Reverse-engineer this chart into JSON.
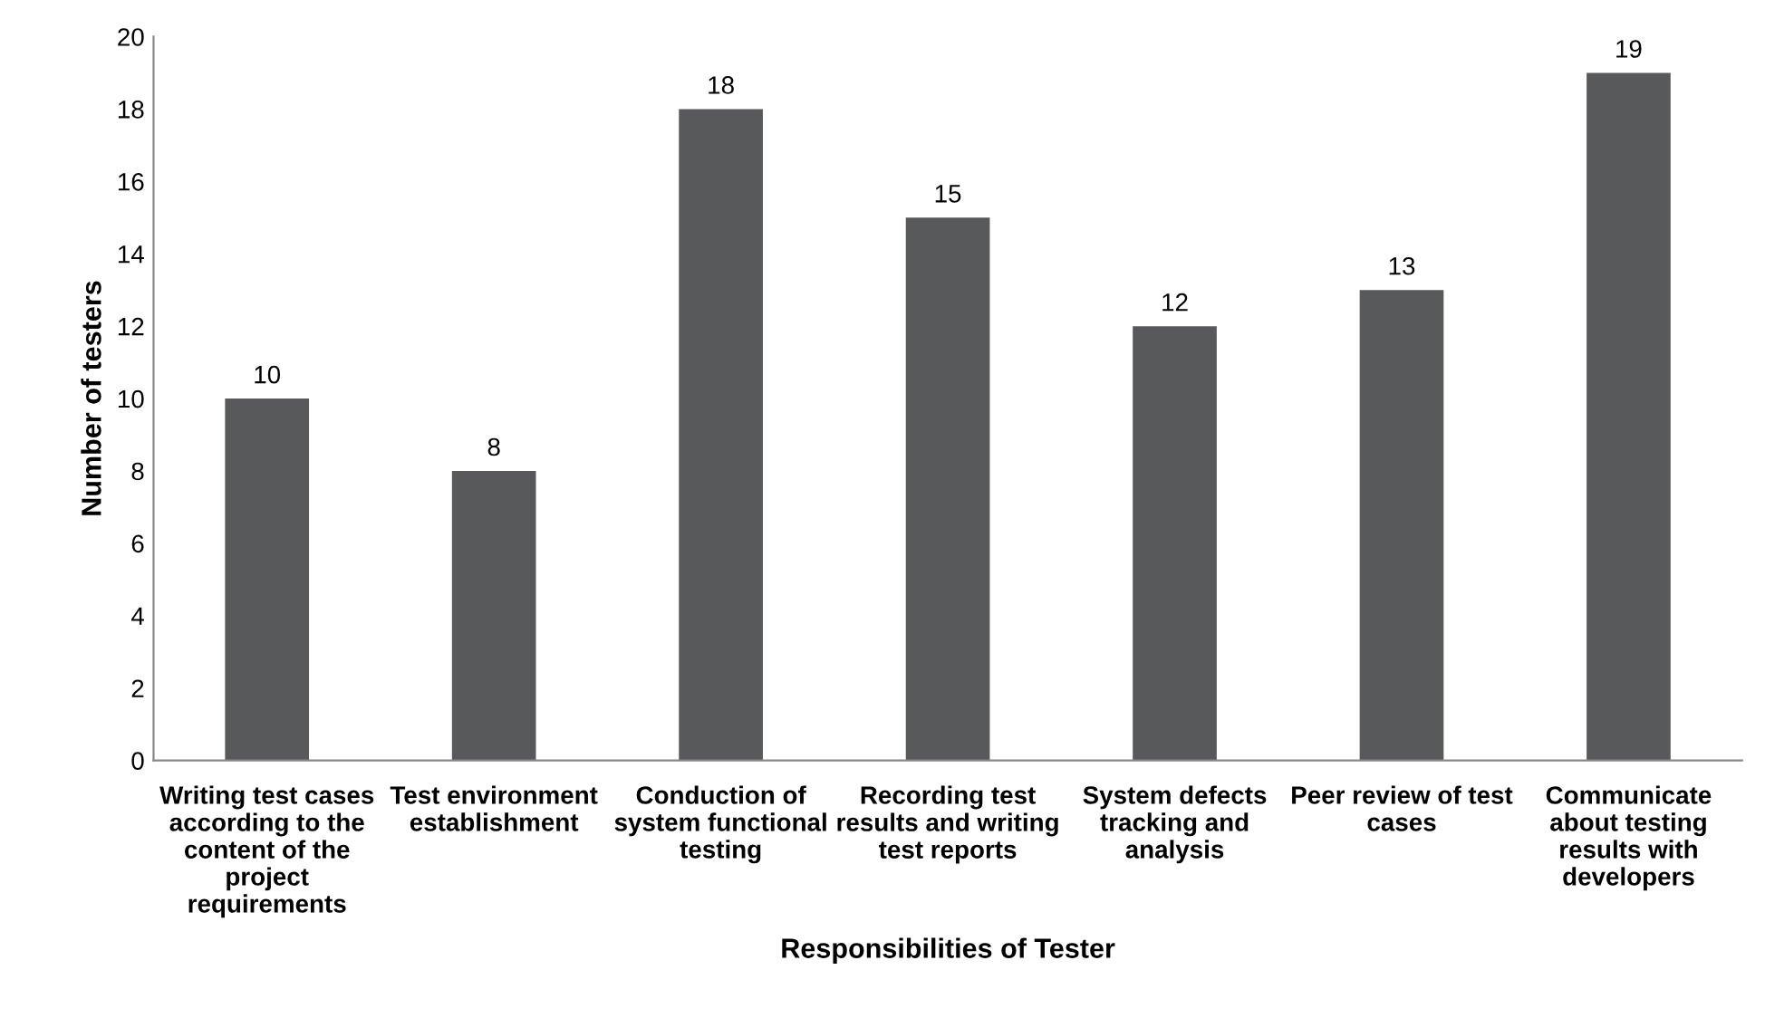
{
  "chart_data": {
    "type": "bar",
    "xlabel": "Responsibilities of Tester",
    "ylabel": "Number of testers",
    "categories": [
      "Writing test cases\naccording to the\ncontent of the\nproject\nrequirements",
      "Test environment\nestablishment",
      "Conduction of\nsystem functional\ntesting",
      "Recording test\nresults and writing\ntest reports",
      "System defects\ntracking and\nanalysis",
      "Peer review of test\ncases",
      "Communicate\nabout testing\nresults with\ndevelopers"
    ],
    "values": [
      10,
      8,
      18,
      15,
      12,
      13,
      19
    ],
    "color": "#58595b",
    "ylim": [
      0,
      20
    ],
    "yticks": [
      0,
      2,
      4,
      6,
      8,
      10,
      12,
      14,
      16,
      18,
      20
    ],
    "grid": false,
    "legend": false,
    "data_labels": true
  }
}
